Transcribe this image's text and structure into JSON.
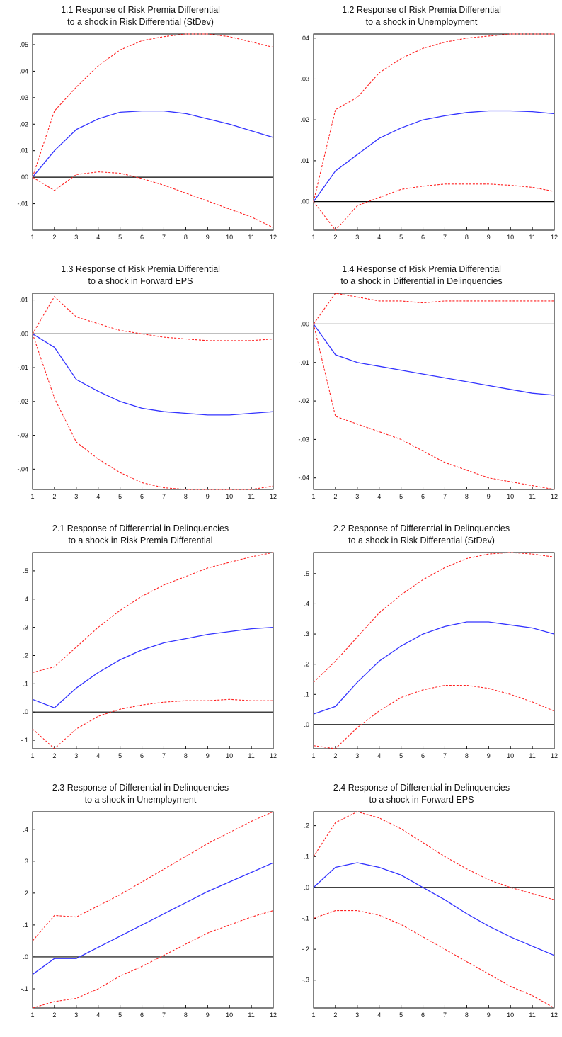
{
  "colors": {
    "impulse": "#3333ff",
    "band": "#ff2020",
    "zero": "#000000",
    "frame": "#000000"
  },
  "chart_data": [
    {
      "type": "line",
      "title": [
        "1.1 Response of Risk Premia Differential",
        "to a shock in Risk Differential (StDev)"
      ],
      "x": [
        1,
        2,
        3,
        4,
        5,
        6,
        7,
        8,
        9,
        10,
        11,
        12
      ],
      "xticks": [
        "1",
        "2",
        "3",
        "4",
        "5",
        "6",
        "7",
        "8",
        "9",
        "10",
        "11",
        "12"
      ],
      "ylim": [
        -0.02,
        0.054
      ],
      "yticks": [
        -0.01,
        0.0,
        0.01,
        0.02,
        0.03,
        0.04,
        0.05
      ],
      "ytick_labels": [
        "-.01",
        ".00",
        ".01",
        ".02",
        ".03",
        ".04",
        ".05"
      ],
      "series": [
        {
          "role": "response",
          "values": [
            0.0,
            0.01,
            0.018,
            0.022,
            0.0245,
            0.025,
            0.025,
            0.024,
            0.022,
            0.02,
            0.0175,
            0.015
          ]
        },
        {
          "role": "upper",
          "values": [
            0.0,
            0.025,
            0.034,
            0.042,
            0.048,
            0.0515,
            0.053,
            0.054,
            0.054,
            0.053,
            0.051,
            0.049
          ]
        },
        {
          "role": "lower",
          "values": [
            0.0,
            -0.005,
            0.001,
            0.002,
            0.0015,
            -0.0005,
            -0.003,
            -0.006,
            -0.009,
            -0.012,
            -0.015,
            -0.019
          ]
        }
      ]
    },
    {
      "type": "line",
      "title": [
        "1.2 Response of Risk Premia Differential",
        "to a shock in Unemployment"
      ],
      "x": [
        1,
        2,
        3,
        4,
        5,
        6,
        7,
        8,
        9,
        10,
        11,
        12
      ],
      "xticks": [
        "1",
        "2",
        "3",
        "4",
        "5",
        "6",
        "7",
        "8",
        "9",
        "10",
        "11",
        "12"
      ],
      "ylim": [
        -0.007,
        0.041
      ],
      "yticks": [
        0.0,
        0.01,
        0.02,
        0.03,
        0.04
      ],
      "ytick_labels": [
        ".00",
        ".01",
        ".02",
        ".03",
        ".04"
      ],
      "series": [
        {
          "role": "response",
          "values": [
            0.0,
            0.0075,
            0.0115,
            0.0155,
            0.018,
            0.02,
            0.021,
            0.0218,
            0.0222,
            0.0222,
            0.022,
            0.0215
          ]
        },
        {
          "role": "upper",
          "values": [
            0.0,
            0.0225,
            0.0255,
            0.0315,
            0.035,
            0.0375,
            0.039,
            0.04,
            0.0405,
            0.041,
            0.041,
            0.041
          ]
        },
        {
          "role": "lower",
          "values": [
            0.0,
            -0.007,
            -0.001,
            0.001,
            0.003,
            0.0038,
            0.0043,
            0.0043,
            0.0043,
            0.004,
            0.0035,
            0.0025
          ]
        }
      ]
    },
    {
      "type": "line",
      "title": [
        "1.3 Response of Risk Premia Differential",
        "to a shock in Forward EPS"
      ],
      "x": [
        1,
        2,
        3,
        4,
        5,
        6,
        7,
        8,
        9,
        10,
        11,
        12
      ],
      "xticks": [
        "1",
        "2",
        "3",
        "4",
        "5",
        "6",
        "7",
        "8",
        "9",
        "10",
        "11",
        "12"
      ],
      "ylim": [
        -0.046,
        0.012
      ],
      "yticks": [
        -0.04,
        -0.03,
        -0.02,
        -0.01,
        0.0,
        0.01
      ],
      "ytick_labels": [
        "-.04",
        "-.03",
        "-.02",
        "-.01",
        ".00",
        ".01"
      ],
      "series": [
        {
          "role": "response",
          "values": [
            0.0,
            -0.004,
            -0.0135,
            -0.017,
            -0.02,
            -0.022,
            -0.023,
            -0.0235,
            -0.024,
            -0.024,
            -0.0235,
            -0.023
          ]
        },
        {
          "role": "upper",
          "values": [
            0.0,
            0.011,
            0.005,
            0.003,
            0.001,
            0.0,
            -0.001,
            -0.0015,
            -0.002,
            -0.002,
            -0.002,
            -0.0015
          ]
        },
        {
          "role": "lower",
          "values": [
            0.0,
            -0.019,
            -0.032,
            -0.037,
            -0.041,
            -0.044,
            -0.0455,
            -0.046,
            -0.046,
            -0.046,
            -0.046,
            -0.045
          ]
        }
      ]
    },
    {
      "type": "line",
      "title": [
        "1.4 Response of Risk Premia Differential",
        "to a shock in Differential in Delinquencies"
      ],
      "x": [
        1,
        2,
        3,
        4,
        5,
        6,
        7,
        8,
        9,
        10,
        11,
        12
      ],
      "xticks": [
        "1",
        "2",
        "3",
        "4",
        "5",
        "6",
        "7",
        "8",
        "9",
        "10",
        "11",
        "12"
      ],
      "ylim": [
        -0.043,
        0.008
      ],
      "yticks": [
        -0.04,
        -0.03,
        -0.02,
        -0.01,
        0.0
      ],
      "ytick_labels": [
        "-.04",
        "-.03",
        "-.02",
        "-.01",
        ".00"
      ],
      "series": [
        {
          "role": "response",
          "values": [
            0.0,
            -0.008,
            -0.01,
            -0.011,
            -0.012,
            -0.013,
            -0.014,
            -0.015,
            -0.016,
            -0.017,
            -0.018,
            -0.0185
          ]
        },
        {
          "role": "upper",
          "values": [
            0.0,
            0.008,
            0.007,
            0.006,
            0.006,
            0.0055,
            0.006,
            0.006,
            0.006,
            0.006,
            0.006,
            0.006
          ]
        },
        {
          "role": "lower",
          "values": [
            0.0,
            -0.024,
            -0.026,
            -0.028,
            -0.03,
            -0.033,
            -0.036,
            -0.038,
            -0.04,
            -0.041,
            -0.042,
            -0.043
          ]
        }
      ]
    },
    {
      "type": "line",
      "title": [
        "2.1 Response of Differential in Delinquencies",
        "to a shock in Risk Premia Differential"
      ],
      "x": [
        1,
        2,
        3,
        4,
        5,
        6,
        7,
        8,
        9,
        10,
        11,
        12
      ],
      "xticks": [
        "1",
        "2",
        "3",
        "4",
        "5",
        "6",
        "7",
        "8",
        "9",
        "10",
        "11",
        "12"
      ],
      "ylim": [
        -0.13,
        0.565
      ],
      "yticks": [
        -0.1,
        0.0,
        0.1,
        0.2,
        0.3,
        0.4,
        0.5
      ],
      "ytick_labels": [
        "-.1",
        ".0",
        ".1",
        ".2",
        ".3",
        ".4",
        ".5"
      ],
      "series": [
        {
          "role": "response",
          "values": [
            0.045,
            0.015,
            0.085,
            0.14,
            0.185,
            0.22,
            0.245,
            0.26,
            0.275,
            0.285,
            0.295,
            0.3
          ]
        },
        {
          "role": "upper",
          "values": [
            0.14,
            0.16,
            0.23,
            0.3,
            0.36,
            0.41,
            0.45,
            0.48,
            0.51,
            0.53,
            0.55,
            0.565
          ]
        },
        {
          "role": "lower",
          "values": [
            -0.06,
            -0.13,
            -0.06,
            -0.015,
            0.01,
            0.025,
            0.035,
            0.04,
            0.04,
            0.045,
            0.04,
            0.04
          ]
        }
      ]
    },
    {
      "type": "line",
      "title": [
        "2.2 Response of Differential in Delinquencies",
        "to a shock in Risk Differential (StDev)"
      ],
      "x": [
        1,
        2,
        3,
        4,
        5,
        6,
        7,
        8,
        9,
        10,
        11,
        12
      ],
      "xticks": [
        "1",
        "2",
        "3",
        "4",
        "5",
        "6",
        "7",
        "8",
        "9",
        "10",
        "11",
        "12"
      ],
      "ylim": [
        -0.08,
        0.57
      ],
      "yticks": [
        0.0,
        0.1,
        0.2,
        0.3,
        0.4,
        0.5
      ],
      "ytick_labels": [
        ".0",
        ".1",
        ".2",
        ".3",
        ".4",
        ".5"
      ],
      "series": [
        {
          "role": "response",
          "values": [
            0.035,
            0.06,
            0.14,
            0.21,
            0.26,
            0.3,
            0.325,
            0.34,
            0.34,
            0.33,
            0.32,
            0.3
          ]
        },
        {
          "role": "upper",
          "values": [
            0.14,
            0.21,
            0.29,
            0.37,
            0.43,
            0.48,
            0.52,
            0.55,
            0.565,
            0.57,
            0.565,
            0.555
          ]
        },
        {
          "role": "lower",
          "values": [
            -0.07,
            -0.08,
            -0.01,
            0.045,
            0.09,
            0.115,
            0.13,
            0.13,
            0.12,
            0.1,
            0.075,
            0.045
          ]
        }
      ]
    },
    {
      "type": "line",
      "title": [
        "2.3 Response of Differential in Delinquencies",
        "to a shock in Unemployment"
      ],
      "x": [
        1,
        2,
        3,
        4,
        5,
        6,
        7,
        8,
        9,
        10,
        11,
        12
      ],
      "xticks": [
        "1",
        "2",
        "3",
        "4",
        "5",
        "6",
        "7",
        "8",
        "9",
        "10",
        "11",
        "12"
      ],
      "ylim": [
        -0.16,
        0.455
      ],
      "yticks": [
        -0.1,
        0.0,
        0.1,
        0.2,
        0.3,
        0.4
      ],
      "ytick_labels": [
        "-.1",
        ".0",
        ".1",
        ".2",
        ".3",
        ".4"
      ],
      "series": [
        {
          "role": "response",
          "values": [
            -0.055,
            -0.005,
            -0.005,
            0.03,
            0.065,
            0.1,
            0.135,
            0.17,
            0.205,
            0.235,
            0.265,
            0.295
          ]
        },
        {
          "role": "upper",
          "values": [
            0.05,
            0.13,
            0.125,
            0.16,
            0.195,
            0.235,
            0.275,
            0.315,
            0.355,
            0.39,
            0.425,
            0.455
          ]
        },
        {
          "role": "lower",
          "values": [
            -0.16,
            -0.14,
            -0.13,
            -0.1,
            -0.06,
            -0.03,
            0.005,
            0.04,
            0.075,
            0.1,
            0.125,
            0.145
          ]
        }
      ]
    },
    {
      "type": "line",
      "title": [
        "2.4 Response of Differential in Delinquencies",
        "to a shock in Forward EPS"
      ],
      "x": [
        1,
        2,
        3,
        4,
        5,
        6,
        7,
        8,
        9,
        10,
        11,
        12
      ],
      "xticks": [
        "1",
        "2",
        "3",
        "4",
        "5",
        "6",
        "7",
        "8",
        "9",
        "10",
        "11",
        "12"
      ],
      "ylim": [
        -0.39,
        0.245
      ],
      "yticks": [
        -0.3,
        -0.2,
        -0.1,
        0.0,
        0.1,
        0.2
      ],
      "ytick_labels": [
        "-.3",
        "-.2",
        "-.1",
        ".0",
        ".1",
        ".2"
      ],
      "series": [
        {
          "role": "response",
          "values": [
            0.0,
            0.065,
            0.08,
            0.065,
            0.04,
            0.0,
            -0.04,
            -0.085,
            -0.125,
            -0.16,
            -0.19,
            -0.22
          ]
        },
        {
          "role": "upper",
          "values": [
            0.1,
            0.21,
            0.245,
            0.225,
            0.19,
            0.145,
            0.1,
            0.06,
            0.025,
            0.0,
            -0.02,
            -0.04
          ]
        },
        {
          "role": "lower",
          "values": [
            -0.1,
            -0.075,
            -0.075,
            -0.09,
            -0.12,
            -0.16,
            -0.2,
            -0.24,
            -0.28,
            -0.32,
            -0.35,
            -0.39
          ]
        }
      ]
    }
  ]
}
